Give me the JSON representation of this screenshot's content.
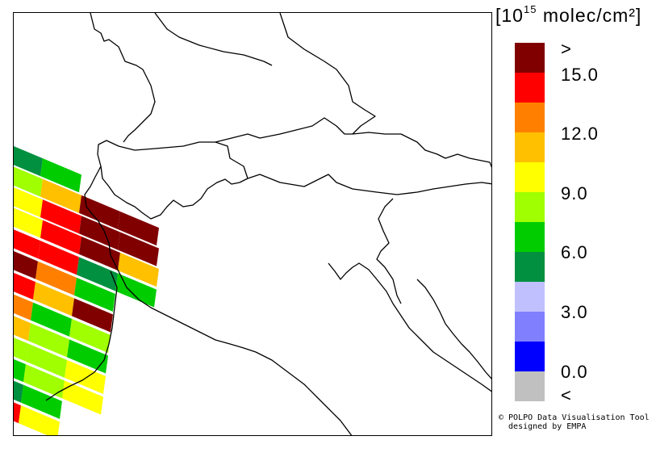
{
  "legend": {
    "unit_prefix": "[10",
    "unit_exponent": "15",
    "unit_suffix": " molec/cm²]",
    "colors": [
      "#800000",
      "#ff0000",
      "#ff8000",
      "#ffc000",
      "#ffff00",
      "#a0ff00",
      "#00cc00",
      "#009040",
      "#c0c0ff",
      "#8080ff",
      "#0000ff",
      "#c0c0c0"
    ],
    "labels": [
      ">",
      "15.0",
      "12.0",
      "9.0",
      "6.0",
      "3.0",
      "0.0",
      "<"
    ]
  },
  "credit": {
    "line1": "© POLPO Data Visualisation Tool",
    "line2": "  designed by EMPA"
  },
  "map": {
    "background": "#ffffff",
    "border_color": "#000000",
    "swath_rows": [
      [
        "#009040",
        "#00cc00"
      ],
      [
        "#a0ff00",
        "#ffc000",
        "#800000",
        "#800000"
      ],
      [
        "#ffff00",
        "#ff0000",
        "#800000",
        "#800000"
      ],
      [
        "#ffff00",
        "#ff0000",
        "#800000",
        "#ffc000"
      ],
      [
        "#ff0000",
        "#ff0000",
        "#009040",
        "#00cc00"
      ],
      [
        "#800000",
        "#ff8000",
        "#00cc00"
      ],
      [
        "#ff0000",
        "#ffc000",
        "#800000"
      ],
      [
        "#ff8000",
        "#00cc00",
        "#a0ff00"
      ],
      [
        "#ffc000",
        "#a0ff00",
        "#00cc00"
      ],
      [
        "#a0ff00",
        "#a0ff00",
        "#ffff00"
      ],
      [
        "#00cc00",
        "#a0ff00",
        "#ffff00"
      ],
      [
        "#009040",
        "#00cc00"
      ],
      [
        "#ff0000",
        "#ffff00"
      ]
    ]
  }
}
